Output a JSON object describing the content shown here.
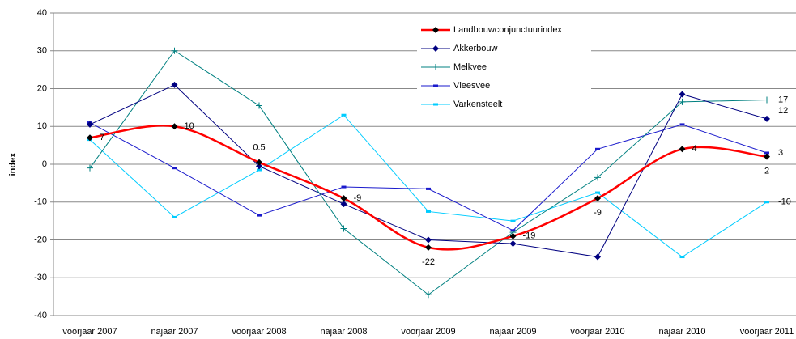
{
  "chart_data": {
    "type": "line",
    "y_label": "index",
    "categories": [
      "voorjaar 2007",
      "najaar 2007",
      "voorjaar 2008",
      "najaar 2008",
      "voorjaar 2009",
      "najaar 2009",
      "voorjaar 2010",
      "najaar 2010",
      "voorjaar 2011"
    ],
    "series": [
      {
        "name": "Landbouwconjunctuurindex",
        "color": "#ff0000",
        "marker_color": "#000000",
        "marker": "diamond",
        "smooth": true,
        "labels": "all",
        "values": [
          7,
          10,
          0.5,
          -9,
          -22,
          -19,
          -9,
          4,
          2
        ]
      },
      {
        "name": "Akkerbouw",
        "color": "#000080",
        "marker": "diamond",
        "labels": "last",
        "values": [
          10.5,
          21,
          -0.5,
          -10.5,
          -20,
          -21,
          -24.5,
          18.5,
          12
        ]
      },
      {
        "name": "Melkvee",
        "color": "#008080",
        "marker": "plus",
        "labels": "last",
        "values": [
          -1,
          30,
          15.5,
          -17,
          -34.5,
          -18,
          -3.5,
          16.5,
          17
        ]
      },
      {
        "name": "Vleesvee",
        "color": "#1a1acc",
        "marker": "dash",
        "labels": "last",
        "values": [
          11,
          -1,
          -13.5,
          -6,
          -6.5,
          -17.5,
          4,
          10.5,
          3
        ]
      },
      {
        "name": "Varkensteelt",
        "color": "#00ccff",
        "marker": "dash",
        "labels": "last",
        "values": [
          6.5,
          -14,
          -1.5,
          13,
          -12.5,
          -15,
          -7.5,
          -24.5,
          -10
        ]
      }
    ],
    "ylim": [
      -40,
      40
    ],
    "yticks": [
      -40,
      -30,
      -20,
      -10,
      0,
      10,
      20,
      30,
      40
    ],
    "grid": true
  }
}
